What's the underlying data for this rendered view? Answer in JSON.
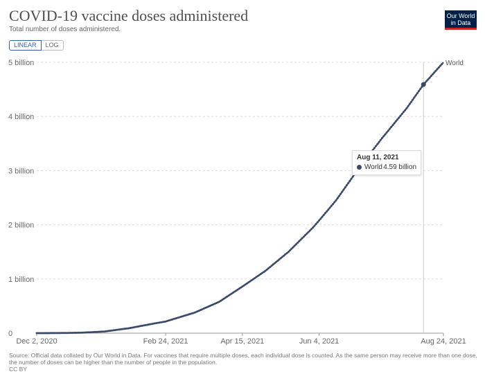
{
  "header": {
    "title": "COVID-19 vaccine doses administered",
    "subtitle": "Total number of doses administered.",
    "logo_line1": "Our World",
    "logo_line2": "in Data"
  },
  "scale_toggle": {
    "linear_label": "LINEAR",
    "log_label": "LOG",
    "selected": "LINEAR"
  },
  "tooltip": {
    "date": "Aug 11, 2021",
    "series": "World",
    "value": "4.59 billion"
  },
  "footer": {
    "source": "Source: Official data collated by Our World in Data. For vaccines that require multiple doses, each individual dose is counted. As the same person may receive more than one dose, the number of doses can be higher than the number of people in the population.",
    "license": "CC BY"
  },
  "colors": {
    "series": "#3b4a6b",
    "grid": "#dddddd",
    "hover_line": "#cccccc"
  },
  "chart_data": {
    "type": "line",
    "title": "COVID-19 vaccine doses administered",
    "subtitle": "Total number of doses administered.",
    "xlabel": "",
    "ylabel": "",
    "x_range": [
      "2020-12-02",
      "2021-08-24"
    ],
    "ylim": [
      0,
      5000000000
    ],
    "grid": true,
    "legend": "inline-right",
    "x_ticks": [
      {
        "date": "2020-12-02",
        "label": "Dec 2, 2020"
      },
      {
        "date": "2021-02-24",
        "label": "Feb 24, 2021"
      },
      {
        "date": "2021-04-15",
        "label": "Apr 15, 2021"
      },
      {
        "date": "2021-06-04",
        "label": "Jun 4, 2021"
      },
      {
        "date": "2021-08-24",
        "label": "Aug 24, 2021"
      }
    ],
    "y_ticks": [
      {
        "value": 0,
        "label": "0"
      },
      {
        "value": 1000000000,
        "label": "1 billion"
      },
      {
        "value": 2000000000,
        "label": "2 billion"
      },
      {
        "value": 3000000000,
        "label": "3 billion"
      },
      {
        "value": 4000000000,
        "label": "4 billion"
      },
      {
        "value": 5000000000,
        "label": "5 billion"
      }
    ],
    "series": [
      {
        "name": "World",
        "points": [
          [
            "2020-12-02",
            0
          ],
          [
            "2020-12-15",
            1000000
          ],
          [
            "2020-12-31",
            8000000
          ],
          [
            "2021-01-15",
            30000000
          ],
          [
            "2021-01-31",
            90000000
          ],
          [
            "2021-02-15",
            170000000
          ],
          [
            "2021-02-24",
            215000000
          ],
          [
            "2021-03-15",
            380000000
          ],
          [
            "2021-03-31",
            580000000
          ],
          [
            "2021-04-15",
            860000000
          ],
          [
            "2021-04-30",
            1150000000
          ],
          [
            "2021-05-15",
            1500000000
          ],
          [
            "2021-05-31",
            1950000000
          ],
          [
            "2021-06-04",
            2080000000
          ],
          [
            "2021-06-15",
            2450000000
          ],
          [
            "2021-06-30",
            3050000000
          ],
          [
            "2021-07-15",
            3600000000
          ],
          [
            "2021-07-31",
            4150000000
          ],
          [
            "2021-08-11",
            4590000000
          ],
          [
            "2021-08-24",
            5000000000
          ]
        ]
      }
    ],
    "highlight": {
      "date": "2021-08-11",
      "value": 4590000000
    }
  }
}
